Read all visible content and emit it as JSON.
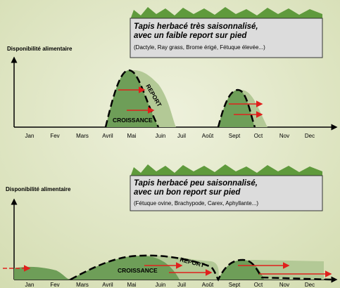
{
  "months": [
    "Jan",
    "Fev",
    "Mars",
    "Avril",
    "Mai",
    "Juin",
    "Juil",
    "Août",
    "Sept",
    "Oct",
    "Nov",
    "Dec"
  ],
  "panels": [
    {
      "title": "Tapis herbacé très saisonnalisé,",
      "title_line2": "avec un faible report sur pied",
      "subtitle": "(Dactyle, Ray grass, Brome érigé, Fétuque élevée...)",
      "y_label": "Disponibilité alimentaire",
      "growth_label": "CROISSANCE",
      "report_label": "REPORT"
    },
    {
      "title": "Tapis herbacé peu saisonnalisé,",
      "title_line2": "avec un bon report sur pied",
      "subtitle": "(Fétuque ovine, Brachypode, Carex, Aphyllante...)",
      "y_label": "Disponibilité alimentaire",
      "growth_label": "CROISSANCE",
      "report_label": "REPORT"
    }
  ]
}
